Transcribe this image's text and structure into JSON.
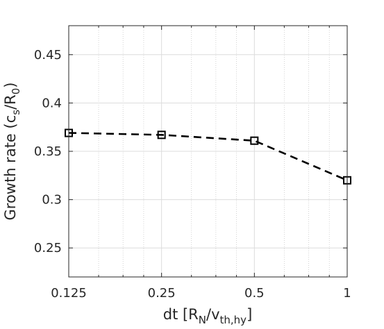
{
  "chart_data": {
    "type": "line",
    "title": "",
    "x_scale": "log2",
    "xlim": [
      0.125,
      1
    ],
    "ylim": [
      0.22,
      0.48
    ],
    "grid": true,
    "x_tick_labels": [
      "0.125",
      "0.25",
      "0.5",
      "1"
    ],
    "x_tick_values": [
      0.125,
      0.25,
      0.5,
      1
    ],
    "y_tick_labels": [
      "0.25",
      "0.3",
      "0.35",
      "0.4",
      "0.45"
    ],
    "y_tick_values": [
      0.25,
      0.3,
      0.35,
      0.4,
      0.45
    ],
    "xlabel": {
      "main": "dt [R",
      "sub1": "N",
      "mid": "/v",
      "sub2": "th,hy",
      "end": "]"
    },
    "ylabel": {
      "main": "Growth rate (c",
      "sub1": "s",
      "mid": "/R",
      "sub2": "0",
      "end": ")"
    },
    "series": [
      {
        "x": [
          0.125,
          0.25,
          0.5,
          1
        ],
        "y": [
          0.369,
          0.367,
          0.361,
          0.32
        ],
        "line_style": "dashed",
        "marker": "square",
        "color": "#000000"
      }
    ]
  }
}
